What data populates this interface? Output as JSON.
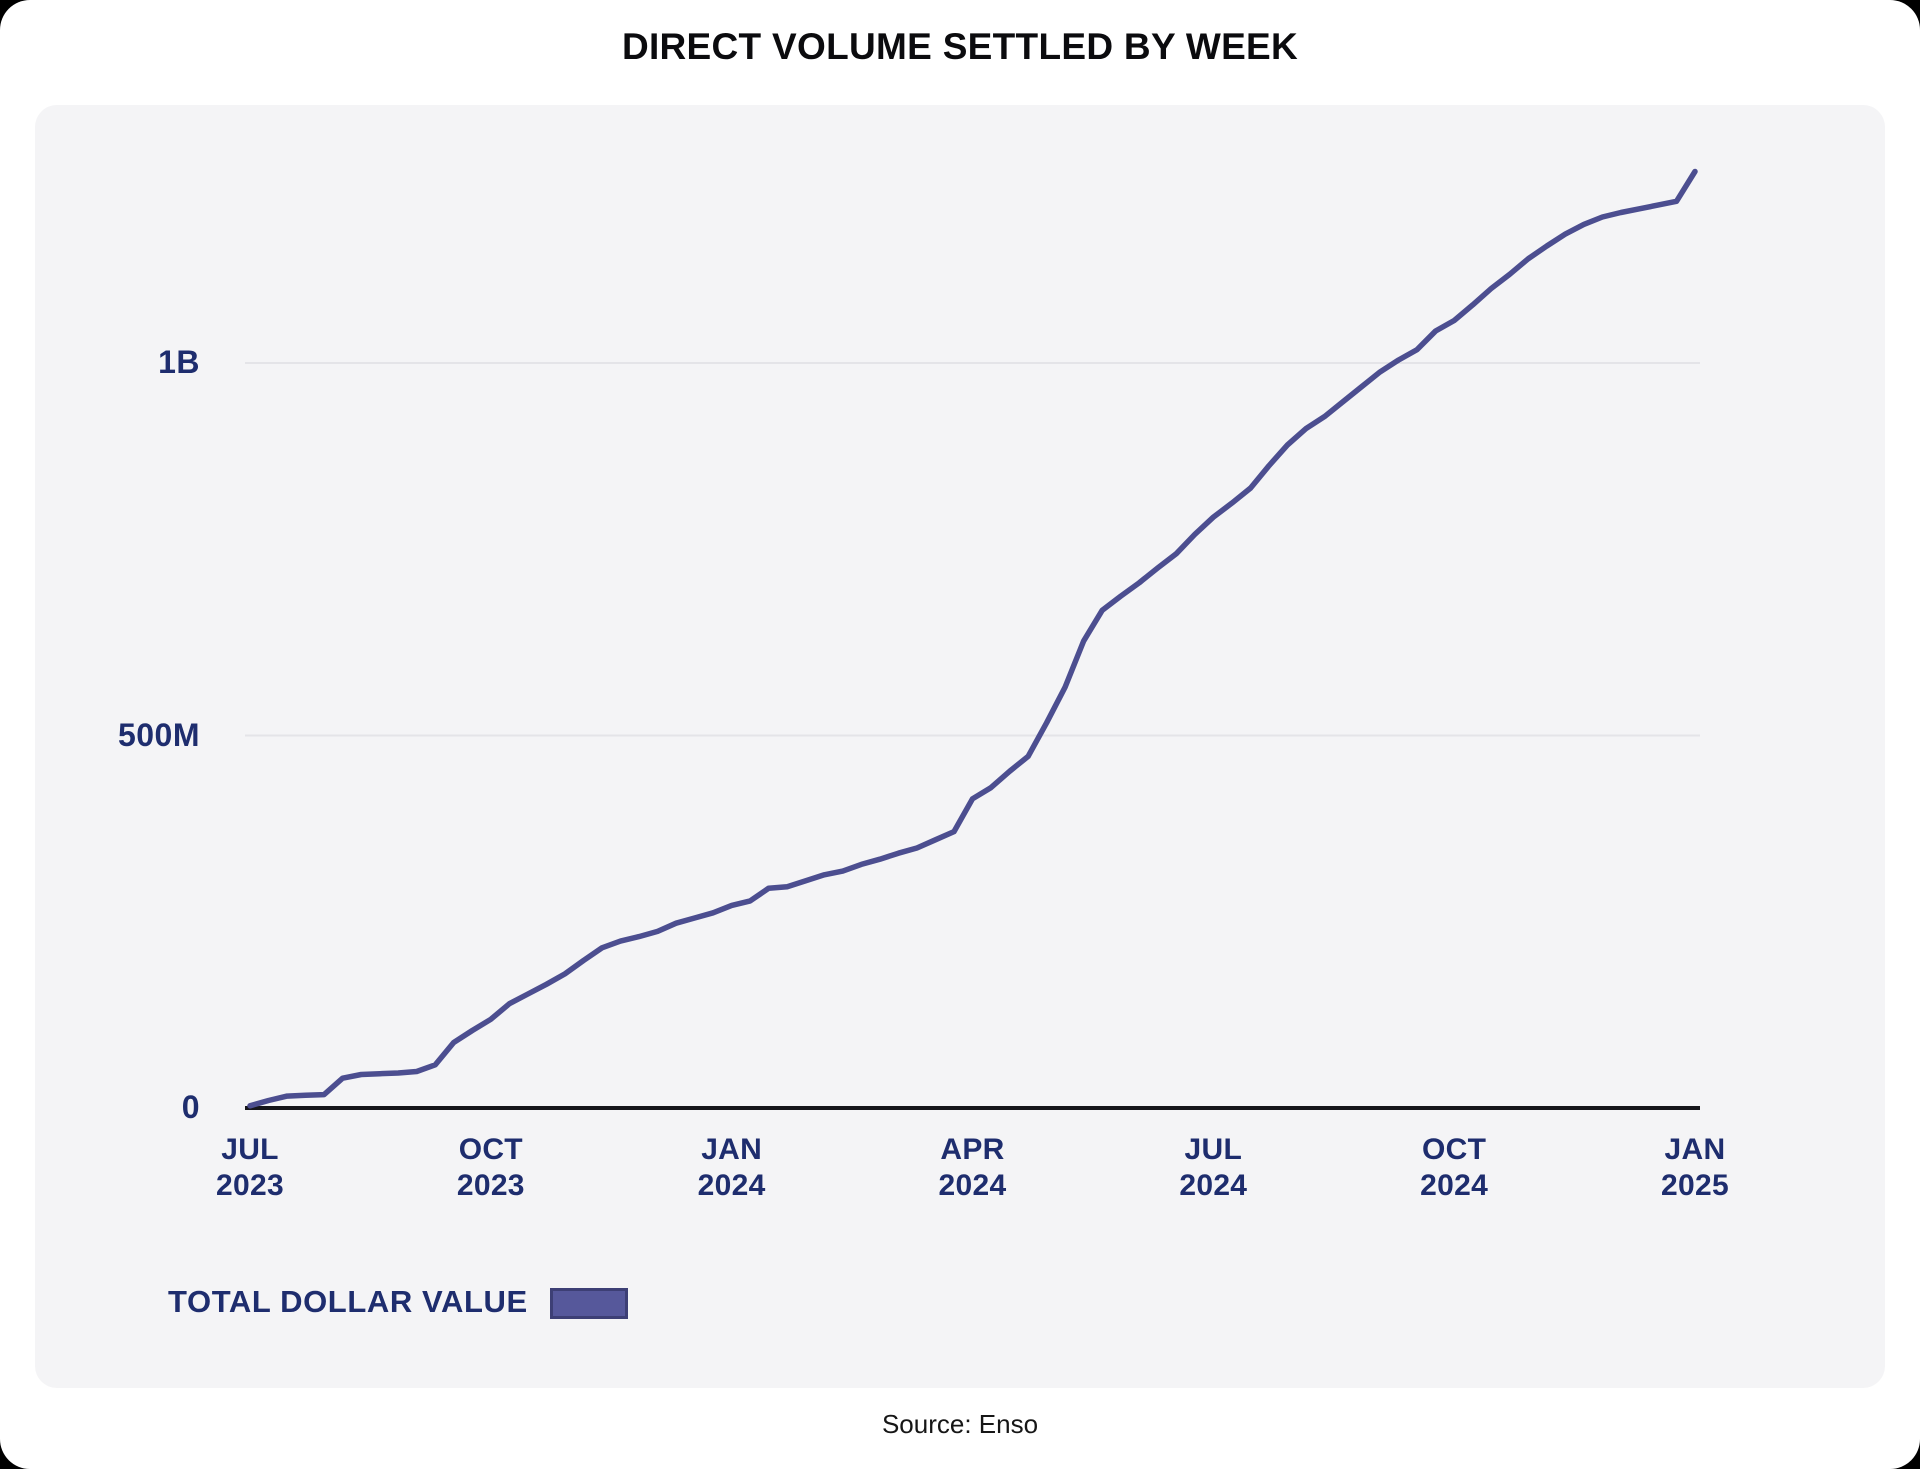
{
  "page": {
    "title": "DIRECT VOLUME SETTLED BY WEEK",
    "source": "Source: Enso"
  },
  "colors": {
    "line": "#4c4e90",
    "swatch": "#56589b",
    "swatch_border": "#3d3f75",
    "navy_label": "#1e2d6e",
    "grid": "#e4e4e8",
    "axis": "#15151a",
    "card_bg": "#f4f4f6"
  },
  "chart_data": {
    "type": "line",
    "title": "DIRECT VOLUME SETTLED BY WEEK",
    "series_name": "TOTAL DOLLAR VALUE",
    "unit": "USD",
    "grid": "horizontal-only",
    "legend_position": "bottom-left",
    "ylim_millions": [
      0,
      1300
    ],
    "y_ticks": [
      {
        "label": "0",
        "value_m": 0
      },
      {
        "label": "500M",
        "value_m": 500
      },
      {
        "label": "1B",
        "value_m": 1000
      }
    ],
    "x_ticks": [
      {
        "line1": "JUL",
        "line2": "2023",
        "week": 0
      },
      {
        "line1": "OCT",
        "line2": "2023",
        "week": 13
      },
      {
        "line1": "JAN",
        "line2": "2024",
        "week": 26
      },
      {
        "line1": "APR",
        "line2": "2024",
        "week": 39
      },
      {
        "line1": "JUL",
        "line2": "2024",
        "week": 52
      },
      {
        "line1": "OCT",
        "line2": "2024",
        "week": 65
      },
      {
        "line1": "JAN",
        "line2": "2025",
        "week": 78
      }
    ],
    "x_range_weeks": [
      0,
      78
    ],
    "points_weekly_usd_m": [
      3,
      10,
      16,
      17,
      18,
      40,
      45,
      46,
      47,
      49,
      58,
      88,
      104,
      119,
      140,
      153,
      166,
      180,
      198,
      215,
      224,
      230,
      237,
      248,
      255,
      262,
      272,
      278,
      295,
      297,
      305,
      313,
      318,
      327,
      334,
      342,
      349,
      360,
      371,
      415,
      430,
      452,
      472,
      517,
      565,
      627,
      668,
      687,
      705,
      725,
      744,
      770,
      793,
      812,
      832,
      862,
      890,
      912,
      928,
      948,
      968,
      988,
      1004,
      1018,
      1043,
      1057,
      1078,
      1100,
      1119,
      1140,
      1157,
      1173,
      1186,
      1196,
      1202,
      1207,
      1212,
      1217,
      1257
    ]
  }
}
